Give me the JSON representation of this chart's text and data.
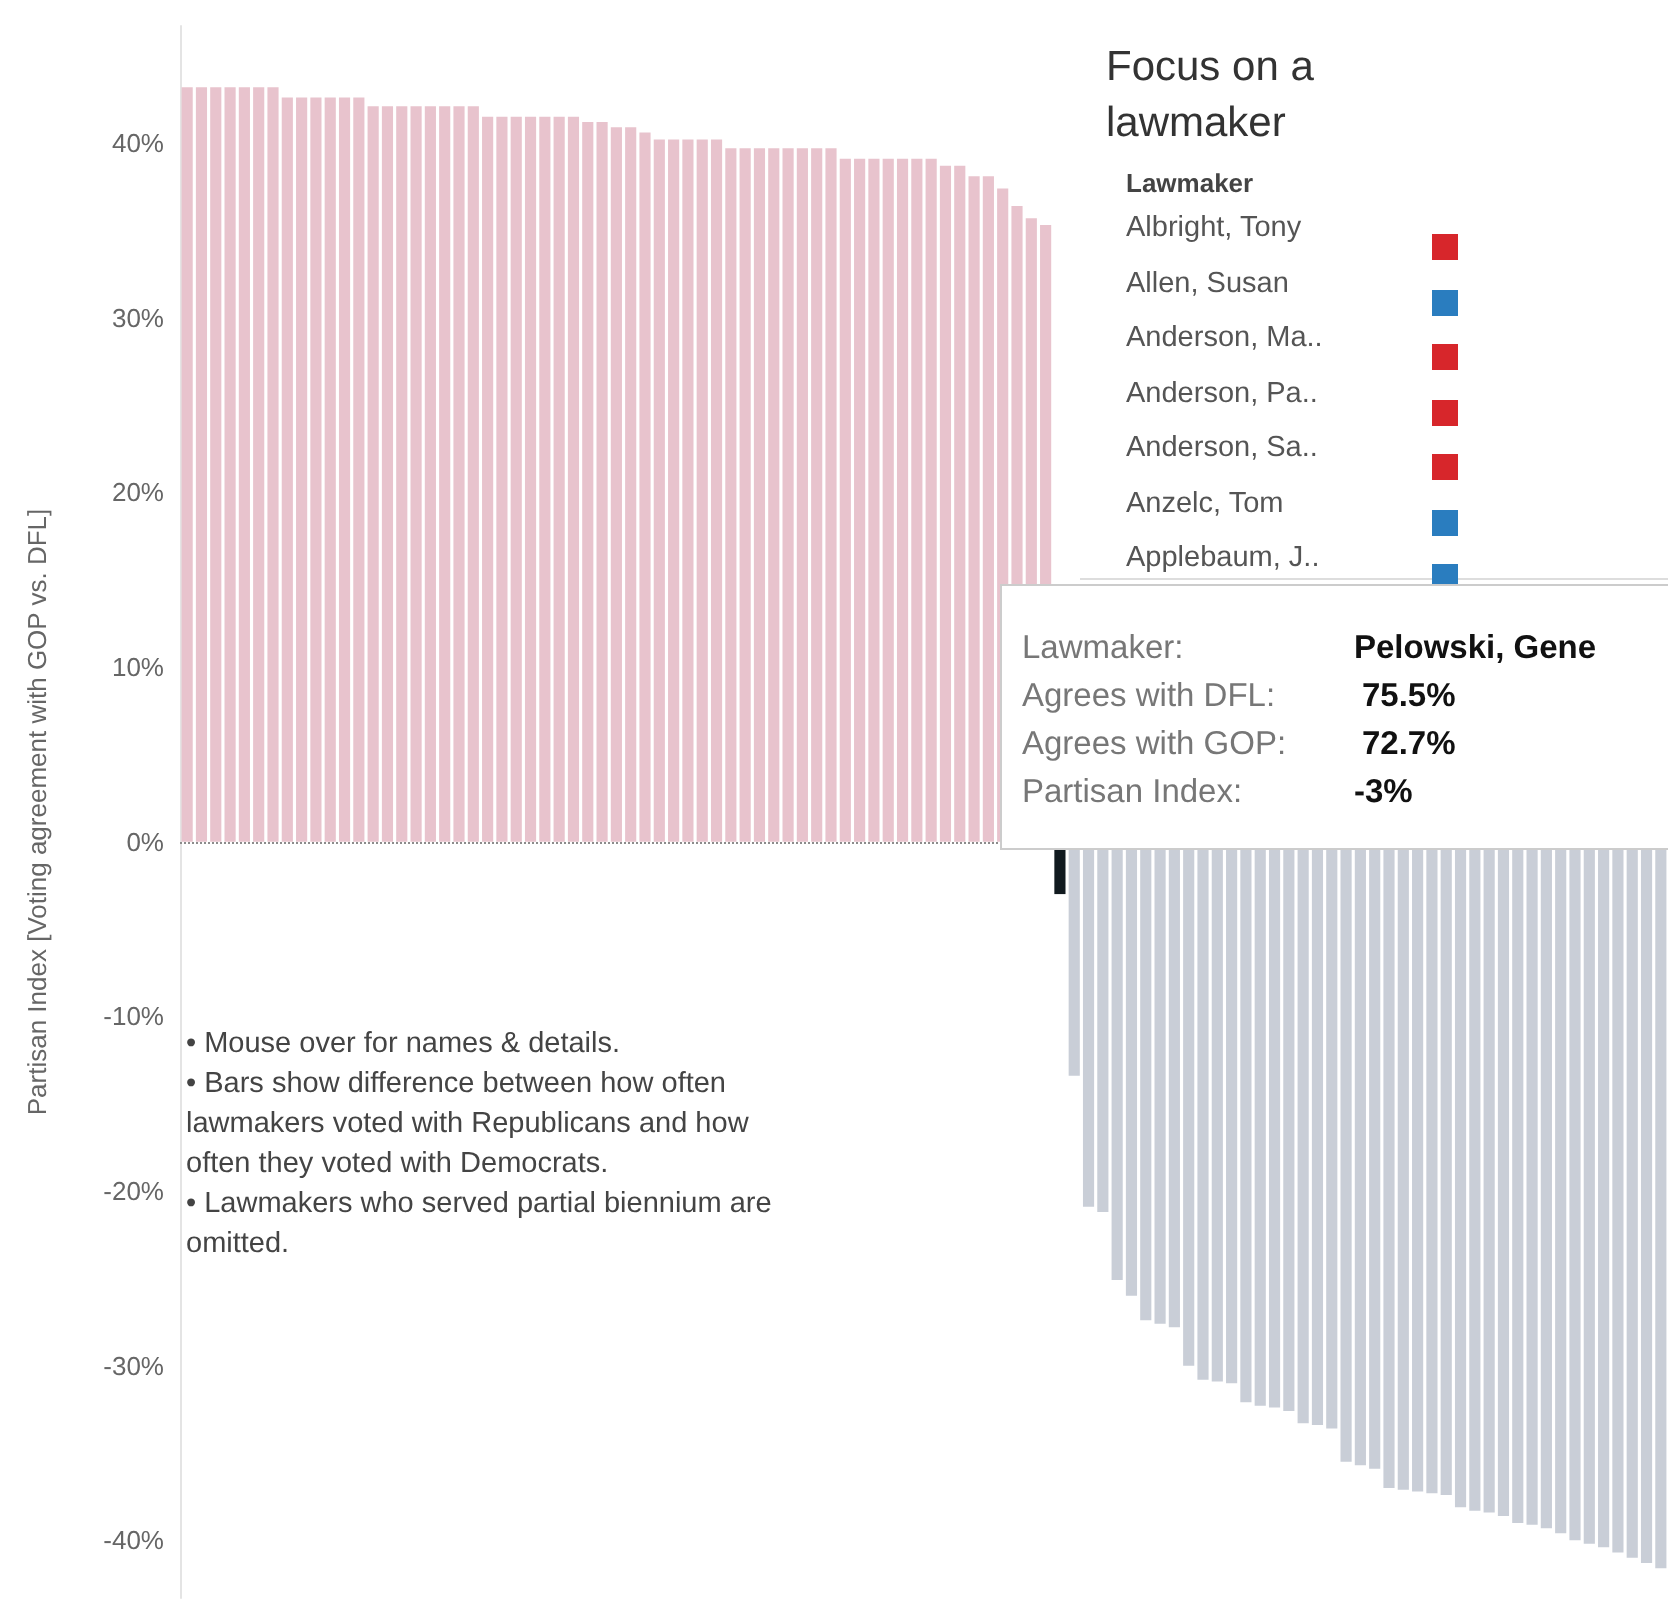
{
  "chart_data": {
    "type": "bar",
    "ylabel": "Partisan Index [Voting agreement with GOP vs. DFL]",
    "categories": [
      null,
      null,
      null,
      null,
      null,
      null,
      null,
      null,
      null,
      null,
      null,
      null,
      null,
      null,
      null,
      null,
      null,
      null,
      null,
      null,
      null,
      null,
      null,
      null,
      null,
      null,
      null,
      null,
      null,
      null,
      null,
      null,
      null,
      null,
      null,
      null,
      null,
      null,
      null,
      null,
      null,
      null,
      null,
      null,
      null,
      null,
      null,
      null,
      null,
      null,
      null,
      null,
      null,
      null,
      null,
      null,
      null,
      null,
      null,
      null,
      null,
      null,
      null,
      null,
      null,
      null,
      null,
      null,
      null,
      null,
      null,
      null,
      null,
      null,
      null,
      null,
      null,
      null,
      null,
      null,
      null,
      null,
      null,
      null,
      null,
      null,
      null,
      null,
      null,
      null,
      null,
      null,
      null,
      null,
      null,
      null,
      null,
      null,
      null,
      null,
      null,
      null,
      null,
      null
    ],
    "values": [
      43.2,
      43.2,
      43.2,
      43.2,
      43.2,
      43.2,
      43.2,
      42.6,
      42.6,
      42.6,
      42.6,
      42.6,
      42.6,
      42.1,
      42.1,
      42.1,
      42.1,
      42.1,
      42.1,
      42.1,
      42.1,
      41.5,
      41.5,
      41.5,
      41.5,
      41.5,
      41.5,
      41.5,
      41.2,
      41.2,
      40.9,
      40.9,
      40.6,
      40.2,
      40.2,
      40.2,
      40.2,
      40.2,
      39.7,
      39.7,
      39.7,
      39.7,
      39.7,
      39.7,
      39.7,
      39.7,
      39.1,
      39.1,
      39.1,
      39.1,
      39.1,
      39.1,
      39.1,
      38.7,
      38.7,
      38.1,
      38.1,
      37.4,
      36.4,
      35.7,
      35.3,
      -3,
      -13.4,
      -20.9,
      -21.2,
      -25.1,
      -26.0,
      -27.4,
      -27.6,
      -27.8,
      -30.0,
      -30.8,
      -30.9,
      -31.0,
      -32.1,
      -32.3,
      -32.4,
      -32.6,
      -33.3,
      -33.4,
      -33.6,
      -35.5,
      -35.7,
      -35.9,
      -37.0,
      -37.1,
      -37.2,
      -37.3,
      -37.4,
      -38.1,
      -38.3,
      -38.4,
      -38.6,
      -39.0,
      -39.1,
      -39.3,
      -39.6,
      -40.0,
      -40.2,
      -40.4,
      -40.7,
      -41.0,
      -41.3,
      -41.6
    ],
    "colors": [
      "#e8c3cd",
      "#e8c3cd",
      "#e8c3cd",
      "#e8c3cd",
      "#e8c3cd",
      "#e8c3cd",
      "#e8c3cd",
      "#e8c3cd",
      "#e8c3cd",
      "#e8c3cd",
      "#e8c3cd",
      "#e8c3cd",
      "#e8c3cd",
      "#e8c3cd",
      "#e8c3cd",
      "#e8c3cd",
      "#e8c3cd",
      "#e8c3cd",
      "#e8c3cd",
      "#e8c3cd",
      "#e8c3cd",
      "#e8c3cd",
      "#e8c3cd",
      "#e8c3cd",
      "#e8c3cd",
      "#e8c3cd",
      "#e8c3cd",
      "#e8c3cd",
      "#e8c3cd",
      "#e8c3cd",
      "#e8c3cd",
      "#e8c3cd",
      "#e8c3cd",
      "#e8c3cd",
      "#e8c3cd",
      "#e8c3cd",
      "#e8c3cd",
      "#e8c3cd",
      "#e8c3cd",
      "#e8c3cd",
      "#e8c3cd",
      "#e8c3cd",
      "#e8c3cd",
      "#e8c3cd",
      "#e8c3cd",
      "#e8c3cd",
      "#e8c3cd",
      "#e8c3cd",
      "#e8c3cd",
      "#e8c3cd",
      "#e8c3cd",
      "#e8c3cd",
      "#e8c3cd",
      "#e8c3cd",
      "#e8c3cd",
      "#e8c3cd",
      "#e8c3cd",
      "#e8c3cd",
      "#e8c3cd",
      "#e8c3cd",
      "#e8c3cd",
      "#111a1f",
      "#c9ced7",
      "#c9ced7",
      "#c9ced7",
      "#c9ced7",
      "#c9ced7",
      "#c9ced7",
      "#c9ced7",
      "#c9ced7",
      "#c9ced7",
      "#c9ced7",
      "#c9ced7",
      "#c9ced7",
      "#c9ced7",
      "#c9ced7",
      "#c9ced7",
      "#c9ced7",
      "#c9ced7",
      "#c9ced7",
      "#c9ced7",
      "#c9ced7",
      "#c9ced7",
      "#c9ced7",
      "#c9ced7",
      "#c9ced7",
      "#c9ced7",
      "#c9ced7",
      "#c9ced7",
      "#c9ced7",
      "#c9ced7",
      "#c9ced7",
      "#c9ced7",
      "#c9ced7",
      "#c9ced7",
      "#c9ced7",
      "#c9ced7",
      "#c9ced7",
      "#c9ced7",
      "#c9ced7",
      "#c9ced7",
      "#c9ced7",
      "#c9ced7",
      "#c9ced7"
    ],
    "ylim": [
      -43.3,
      46.7
    ],
    "yticks": [
      {
        "value": -40,
        "label": "-40%"
      },
      {
        "value": -30,
        "label": "-30%"
      },
      {
        "value": -20,
        "label": "-20%"
      },
      {
        "value": -10,
        "label": "-10%"
      },
      {
        "value": 0,
        "label": "0%"
      },
      {
        "value": 10,
        "label": "10%"
      },
      {
        "value": 20,
        "label": "20%"
      },
      {
        "value": 30,
        "label": "30%"
      },
      {
        "value": 40,
        "label": "40%"
      }
    ],
    "grid": false,
    "ref_lines": [
      {
        "axis": "y",
        "value": 0,
        "color": "#8c8c8c",
        "line_style": "dotted"
      }
    ],
    "annotations": [
      "• Mouse over for names & details.",
      "• Bars show difference between how often lawmakers voted with Republicans and how often they voted with Democrats.",
      "• Lawmakers who served partial biennium are omitted.",
      "Focus on a lawmaker",
      "Lawmaker",
      "Albright, Tony",
      "Allen, Susan",
      "Anderson, Ma..",
      "Anderson, Pa..",
      "Anderson, Sa..",
      "Anzelc, Tom",
      "Applebaum, J..",
      "Lawmaker:",
      "Pelowski, Gene",
      "Agrees with DFL:",
      "75.5%",
      "Agrees with GOP:",
      "72.7%",
      "Partisan Index:",
      "-3%"
    ]
  }
}
